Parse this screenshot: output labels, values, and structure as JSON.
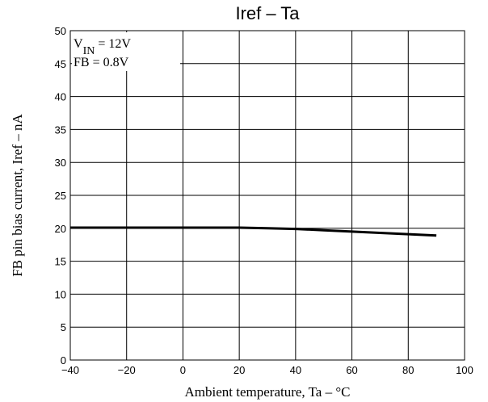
{
  "chart_data": {
    "type": "line",
    "title": "Iref – Ta",
    "xlabel": "Ambient temperature, Ta – °C",
    "ylabel": "FB pin bias current, Iref – nA",
    "xlim": [
      -40,
      100
    ],
    "ylim": [
      0,
      50
    ],
    "xticks": [
      -40,
      -20,
      0,
      20,
      40,
      60,
      80,
      100
    ],
    "yticks": [
      0,
      5,
      10,
      15,
      20,
      25,
      30,
      35,
      40,
      45,
      50
    ],
    "x_tick_labels": [
      "−40",
      "−20",
      "0",
      "20",
      "40",
      "60",
      "80",
      "100"
    ],
    "y_tick_labels": [
      "0",
      "5",
      "10",
      "15",
      "20",
      "25",
      "30",
      "35",
      "40",
      "45",
      "50"
    ],
    "grid": true,
    "annotations": {
      "line1_main": "V",
      "line1_sub": "IN",
      "line1_rest": " = 12V",
      "line2": "FB = 0.8V"
    },
    "series": [
      {
        "x": [
          -40,
          -20,
          0,
          20,
          30,
          40,
          50,
          60,
          70,
          80,
          90
        ],
        "y": [
          20.1,
          20.1,
          20.1,
          20.1,
          20.0,
          19.9,
          19.7,
          19.5,
          19.3,
          19.1,
          18.9
        ]
      }
    ]
  }
}
